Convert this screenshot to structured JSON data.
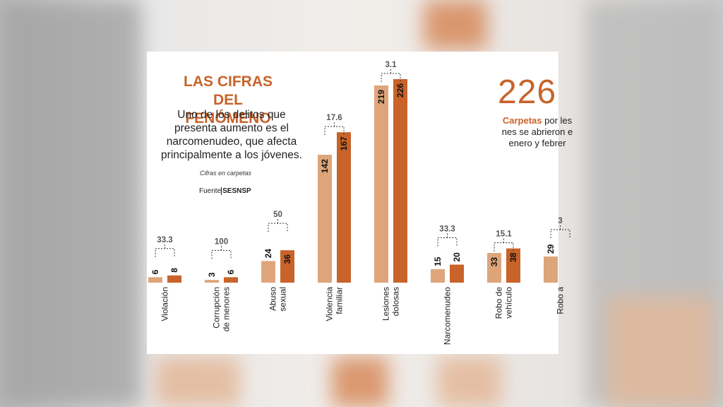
{
  "header": {
    "title_line1": "LAS CIFRAS DEL",
    "title_line2": "FENÓMENO",
    "subtitle": "Uno de los delitos que presenta aumento es el narcomenudeo, que afecta principalmente a los jóvenes.",
    "note": "Cifras en carpetas",
    "source_label": "Fuente",
    "source_value": "SESNSP"
  },
  "highlight": {
    "number": "226",
    "line1_bold": "Carpetas",
    "line1_rest": " por les",
    "line2": "nes se abrieron e",
    "line3": "enero y febrer"
  },
  "colors": {
    "light": "#dea57b",
    "dark": "#c8632a",
    "accent": "#c8632a"
  },
  "chart_data": {
    "type": "bar",
    "categories": [
      [
        "Violación"
      ],
      [
        "Corrupción",
        "de menores"
      ],
      [
        "Abuso",
        "sexual"
      ],
      [
        "Violencia",
        "familiar"
      ],
      [
        "Lesiones",
        "dolosas"
      ],
      [
        "Narcomenudeo"
      ],
      [
        "Robo de",
        "vehículo"
      ],
      [
        "Robo a"
      ]
    ],
    "series": [
      {
        "values": [
          6,
          3,
          24,
          142,
          219,
          15,
          33,
          29
        ]
      },
      {
        "values": [
          8,
          6,
          36,
          167,
          226,
          20,
          38,
          null
        ]
      }
    ],
    "percent_change": [
      "33.3",
      "100",
      "50",
      "17.6",
      "3.1",
      "33.3",
      "15.1",
      "3"
    ],
    "ylim": [
      0,
      226
    ]
  }
}
